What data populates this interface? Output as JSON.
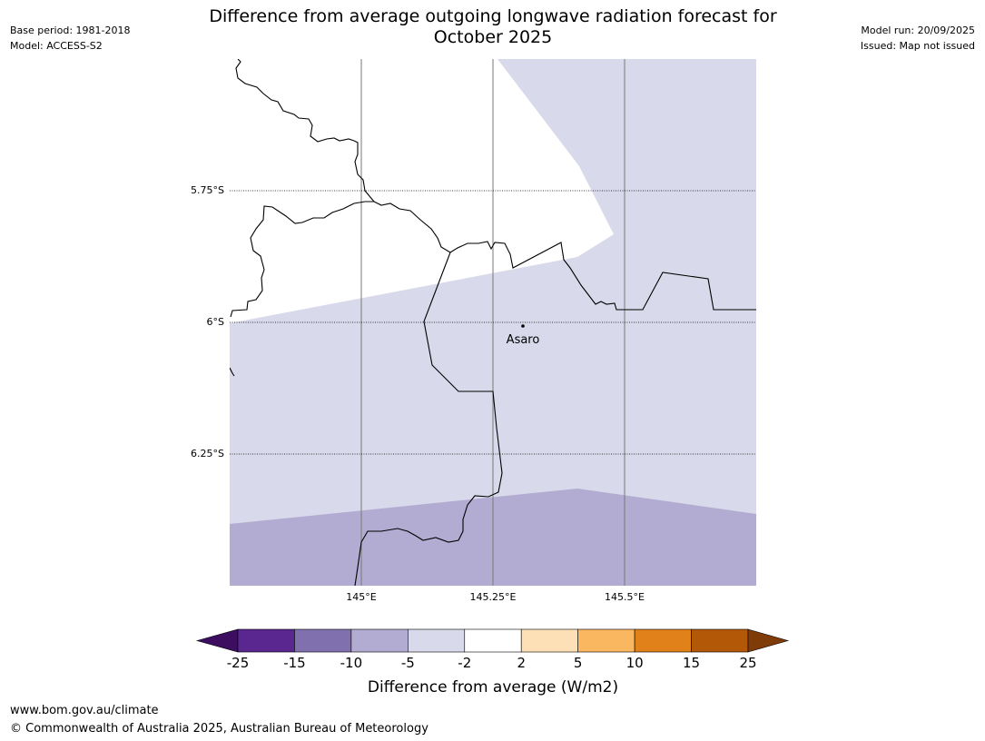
{
  "title": {
    "line1": "Difference from average outgoing longwave radiation forecast for",
    "line2": "October 2025"
  },
  "meta_left": {
    "base_period": "Base period: 1981-2018",
    "model": "Model: ACCESS-S2"
  },
  "meta_right": {
    "model_run": "Model run: 20/09/2025",
    "issued": "Issued: Map not issued"
  },
  "map": {
    "latitude_labels": [
      "5.75°S",
      "6°S",
      "6.25°S"
    ],
    "longitude_labels": [
      "145°E",
      "145.25°E",
      "145.5°E"
    ],
    "place": {
      "name": "Asaro"
    },
    "region_colors": {
      "neutral": "#ffffff",
      "minus2_to_minus5": "#d8d9ea",
      "minus5_to_minus10": "#b2acd2"
    }
  },
  "colorbar": {
    "title": "Difference from average (W/m2)",
    "ticks": [
      "-25",
      "-15",
      "-10",
      "-5",
      "-2",
      "2",
      "5",
      "10",
      "15",
      "25"
    ],
    "colors": [
      "#3d0e5f",
      "#5a2690",
      "#8170ae",
      "#b2acd2",
      "#d8d9ea",
      "#ffffff",
      "#fee0b6",
      "#fbb660",
      "#e0811a",
      "#b35806",
      "#7f3b08"
    ]
  },
  "footer": {
    "url": "www.bom.gov.au/climate",
    "copyright": "© Commonwealth of Australia 2025, Australian Bureau of Meteorology"
  }
}
